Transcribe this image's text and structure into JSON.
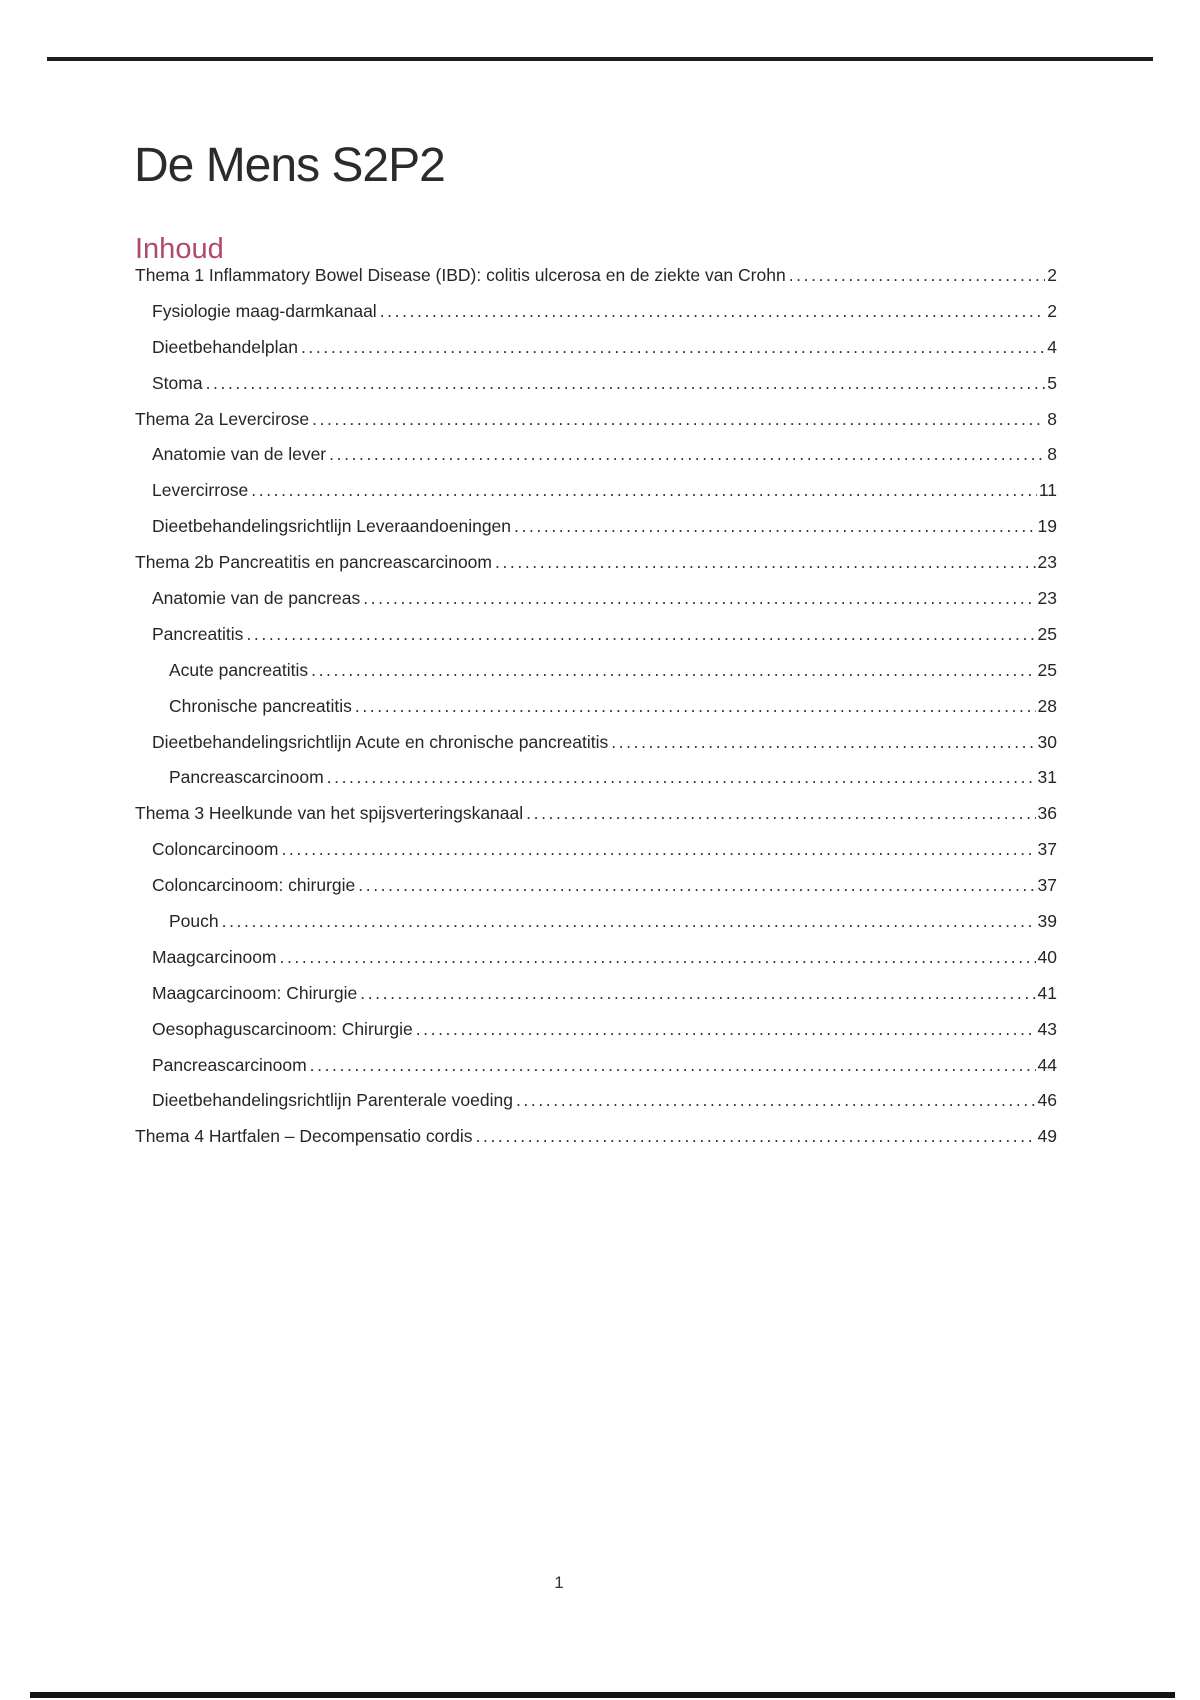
{
  "page": {
    "title": "De Mens S2P2",
    "footer_page_number": "1"
  },
  "colors": {
    "accent": "#b1486f",
    "rule": "#1c1c1c",
    "text": "#262626"
  },
  "toc": {
    "heading": "Inhoud",
    "entries": [
      {
        "label": "Thema 1 Inflammatory Bowel Disease (IBD): colitis ulcerosa en de ziekte van Crohn",
        "page": "2",
        "level": 0
      },
      {
        "label": "Fysiologie maag-darmkanaal",
        "page": "2",
        "level": 1
      },
      {
        "label": "Dieetbehandelplan",
        "page": "4",
        "level": 1
      },
      {
        "label": "Stoma",
        "page": "5",
        "level": 1
      },
      {
        "label": "Thema 2a Levercirose",
        "page": "8",
        "level": 0
      },
      {
        "label": "Anatomie van de lever",
        "page": "8",
        "level": 1
      },
      {
        "label": "Levercirrose",
        "page": "11",
        "level": 1
      },
      {
        "label": "Dieetbehandelingsrichtlijn Leveraandoeningen",
        "page": "19",
        "level": 1
      },
      {
        "label": "Thema 2b Pancreatitis en pancreascarcinoom",
        "page": "23",
        "level": 0
      },
      {
        "label": "Anatomie van de pancreas",
        "page": "23",
        "level": 1
      },
      {
        "label": "Pancreatitis",
        "page": "25",
        "level": 1
      },
      {
        "label": "Acute pancreatitis",
        "page": "25",
        "level": 2
      },
      {
        "label": "Chronische pancreatitis",
        "page": "28",
        "level": 2
      },
      {
        "label": "Dieetbehandelingsrichtlijn Acute en chronische pancreatitis",
        "page": "30",
        "level": 1
      },
      {
        "label": "Pancreascarcinoom",
        "page": "31",
        "level": 2
      },
      {
        "label": "Thema 3 Heelkunde van het spijsverteringskanaal",
        "page": "36",
        "level": 0
      },
      {
        "label": "Coloncarcinoom",
        "page": "37",
        "level": 1
      },
      {
        "label": "Coloncarcinoom: chirurgie",
        "page": "37",
        "level": 1
      },
      {
        "label": "Pouch",
        "page": "39",
        "level": 2
      },
      {
        "label": "Maagcarcinoom",
        "page": "40",
        "level": 1
      },
      {
        "label": "Maagcarcinoom: Chirurgie",
        "page": "41",
        "level": 1
      },
      {
        "label": "Oesophaguscarcinoom: Chirurgie",
        "page": "43",
        "level": 1
      },
      {
        "label": "Pancreascarcinoom",
        "page": "44",
        "level": 1
      },
      {
        "label": "Dieetbehandelingsrichtlijn Parenterale voeding",
        "page": "46",
        "level": 1
      },
      {
        "label": "Thema 4 Hartfalen – Decompensatio cordis",
        "page": "49",
        "level": 0
      }
    ]
  }
}
